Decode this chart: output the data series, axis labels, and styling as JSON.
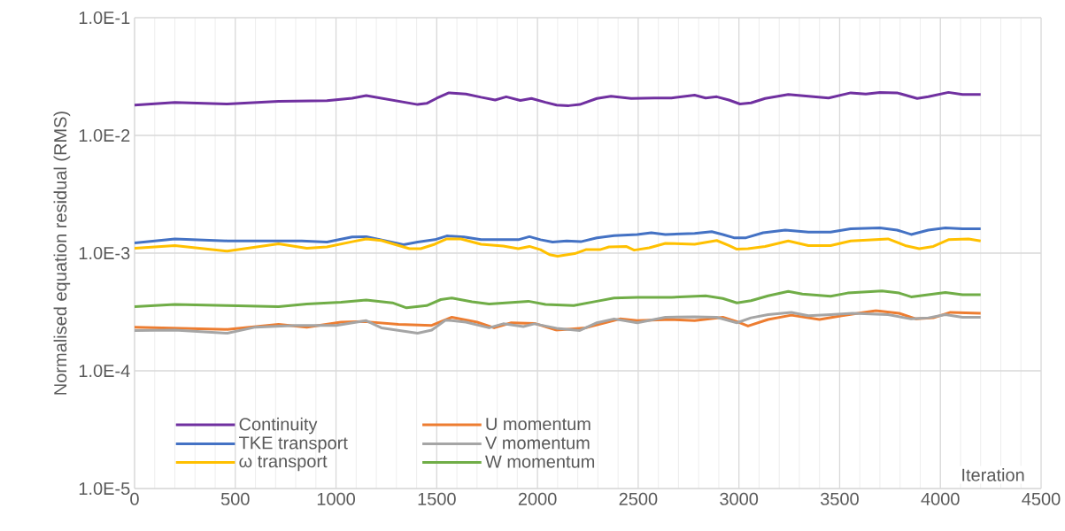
{
  "chart_data": {
    "type": "line",
    "xlabel": "Iteration",
    "ylabel": "Normalised equation residual (RMS)",
    "xlim": [
      0,
      4500
    ],
    "xticks": [
      0,
      500,
      1000,
      1500,
      2000,
      2500,
      3000,
      3500,
      4000,
      4500
    ],
    "ylim": [
      1e-05,
      0.1
    ],
    "log": "y",
    "yticks": [
      {
        "value": 1e-05,
        "label": "1.0E-5"
      },
      {
        "value": 0.0001,
        "label": "1.0E-4"
      },
      {
        "value": 0.001,
        "label": "1.0E-3"
      },
      {
        "value": 0.01,
        "label": "1.0E-2"
      },
      {
        "value": 0.1,
        "label": "1.0E-1"
      }
    ],
    "grid": true,
    "legend": "bottom left",
    "series": [
      {
        "name": "Continuity",
        "color": "#7030a0",
        "x": [
          0,
          200,
          460,
          715,
          955,
          1080,
          1150,
          1405,
          1450,
          1500,
          1560,
          1645,
          1720,
          1790,
          1845,
          1915,
          1970,
          2040,
          2095,
          2155,
          2210,
          2295,
          2365,
          2465,
          2580,
          2665,
          2780,
          2835,
          2890,
          2950,
          3005,
          3060,
          3130,
          3245,
          3345,
          3445,
          3555,
          3630,
          3700,
          3785,
          3885,
          3940,
          4040,
          4110,
          4200
        ],
        "values": [
          0.0181,
          0.0191,
          0.0185,
          0.0195,
          0.0197,
          0.0207,
          0.0218,
          0.0183,
          0.0187,
          0.0207,
          0.023,
          0.0225,
          0.0211,
          0.02,
          0.0213,
          0.0198,
          0.0206,
          0.0191,
          0.0181,
          0.0179,
          0.0183,
          0.0206,
          0.0215,
          0.0206,
          0.0208,
          0.0208,
          0.022,
          0.0208,
          0.0213,
          0.02,
          0.0185,
          0.0189,
          0.0206,
          0.0223,
          0.0215,
          0.0208,
          0.023,
          0.0225,
          0.0232,
          0.023,
          0.0206,
          0.0213,
          0.0232,
          0.0223,
          0.0223
        ]
      },
      {
        "name": "U momentum",
        "color": "#ed7d31",
        "x": [
          0,
          460,
          715,
          855,
          1025,
          1140,
          1310,
          1475,
          1575,
          1700,
          1785,
          1870,
          1985,
          2095,
          2240,
          2325,
          2410,
          2495,
          2665,
          2780,
          2920,
          2990,
          3045,
          3145,
          3260,
          3400,
          3510,
          3680,
          3795,
          3880,
          3965,
          4050,
          4200
        ],
        "values": [
          0.000235,
          0.000225,
          0.000248,
          0.000235,
          0.000259,
          0.000262,
          0.000248,
          0.000243,
          0.000285,
          0.000259,
          0.000232,
          0.000256,
          0.000253,
          0.000222,
          0.000232,
          0.000253,
          0.000276,
          0.000267,
          0.000273,
          0.000267,
          0.000285,
          0.000262,
          0.00024,
          0.000273,
          0.000297,
          0.000273,
          0.000294,
          0.000324,
          0.000308,
          0.000276,
          0.000282,
          0.000314,
          0.000308
        ]
      },
      {
        "name": "TKE transport",
        "color": "#4472c4",
        "x": [
          0,
          200,
          460,
          830,
          955,
          1080,
          1150,
          1335,
          1405,
          1490,
          1550,
          1635,
          1720,
          1905,
          1960,
          2015,
          2075,
          2145,
          2215,
          2295,
          2380,
          2495,
          2565,
          2635,
          2780,
          2865,
          2920,
          2975,
          3035,
          3120,
          3230,
          3345,
          3455,
          3555,
          3700,
          3785,
          3855,
          3940,
          4025,
          4110,
          4200
        ],
        "values": [
          0.00122,
          0.00132,
          0.00127,
          0.00127,
          0.00124,
          0.00137,
          0.00138,
          0.00118,
          0.00124,
          0.0013,
          0.0014,
          0.00137,
          0.0013,
          0.0013,
          0.00138,
          0.0013,
          0.00124,
          0.00127,
          0.00125,
          0.00135,
          0.00141,
          0.00144,
          0.00149,
          0.00144,
          0.00147,
          0.00152,
          0.00144,
          0.00135,
          0.00135,
          0.00149,
          0.00157,
          0.00151,
          0.00151,
          0.00161,
          0.00164,
          0.00157,
          0.00144,
          0.00157,
          0.00164,
          0.00161,
          0.00161
        ]
      },
      {
        "name": "V momentum",
        "color": "#a5a5a5",
        "x": [
          0,
          200,
          460,
          600,
          800,
          1000,
          1150,
          1225,
          1405,
          1475,
          1545,
          1645,
          1760,
          1830,
          1930,
          1985,
          2095,
          2210,
          2295,
          2380,
          2495,
          2635,
          2780,
          2890,
          2990,
          3060,
          3145,
          3260,
          3345,
          3455,
          3565,
          3740,
          3855,
          3940,
          4025,
          4110,
          4200
        ],
        "values": [
          0.00022,
          0.000222,
          0.000209,
          0.000235,
          0.000243,
          0.000243,
          0.000267,
          0.000232,
          0.000209,
          0.000222,
          0.00027,
          0.000259,
          0.000232,
          0.000251,
          0.000238,
          0.000251,
          0.00023,
          0.00022,
          0.000256,
          0.000276,
          0.000256,
          0.000285,
          0.000288,
          0.000285,
          0.000256,
          0.000282,
          0.0003,
          0.000314,
          0.000294,
          0.0003,
          0.000308,
          0.0003,
          0.000276,
          0.000282,
          0.0003,
          0.000285,
          0.000285
        ]
      },
      {
        "name": "ω transport",
        "color": "#ffc000",
        "x": [
          0,
          200,
          460,
          715,
          855,
          955,
          1080,
          1150,
          1225,
          1365,
          1420,
          1490,
          1550,
          1620,
          1720,
          1830,
          1905,
          1960,
          2015,
          2060,
          2100,
          2185,
          2240,
          2310,
          2355,
          2440,
          2480,
          2555,
          2635,
          2780,
          2890,
          2950,
          2990,
          3045,
          3130,
          3245,
          3345,
          3455,
          3555,
          3740,
          3825,
          3895,
          3965,
          4040,
          4140,
          4200
        ],
        "values": [
          0.0011,
          0.00116,
          0.00104,
          0.0012,
          0.0011,
          0.00113,
          0.00125,
          0.00132,
          0.00128,
          0.00109,
          0.00109,
          0.00119,
          0.00132,
          0.00132,
          0.00119,
          0.00115,
          0.00109,
          0.00114,
          0.00107,
          0.00097,
          0.00094,
          0.00099,
          0.00107,
          0.00107,
          0.00113,
          0.00114,
          0.00106,
          0.00111,
          0.00121,
          0.00119,
          0.00128,
          0.00116,
          0.00108,
          0.00109,
          0.00114,
          0.00127,
          0.00116,
          0.00116,
          0.00127,
          0.00132,
          0.00116,
          0.00109,
          0.00114,
          0.0013,
          0.00132,
          0.00127
        ]
      },
      {
        "name": "W momentum",
        "color": "#70ad47",
        "x": [
          0,
          200,
          460,
          715,
          855,
          1025,
          1150,
          1280,
          1350,
          1450,
          1520,
          1575,
          1675,
          1760,
          1955,
          2040,
          2180,
          2295,
          2380,
          2495,
          2665,
          2835,
          2920,
          2990,
          3060,
          3145,
          3245,
          3315,
          3455,
          3540,
          3710,
          3795,
          3855,
          3965,
          4025,
          4110,
          4200
        ],
        "values": [
          0.000351,
          0.000366,
          0.000358,
          0.000351,
          0.00037,
          0.000382,
          0.000399,
          0.000378,
          0.000343,
          0.000358,
          0.000403,
          0.000416,
          0.000386,
          0.00037,
          0.00039,
          0.000366,
          0.000358,
          0.00039,
          0.000416,
          0.000421,
          0.000421,
          0.000434,
          0.000412,
          0.000378,
          0.000394,
          0.000434,
          0.000473,
          0.000449,
          0.00043,
          0.000458,
          0.000478,
          0.000458,
          0.000425,
          0.000449,
          0.000463,
          0.000444,
          0.000444
        ]
      }
    ]
  }
}
